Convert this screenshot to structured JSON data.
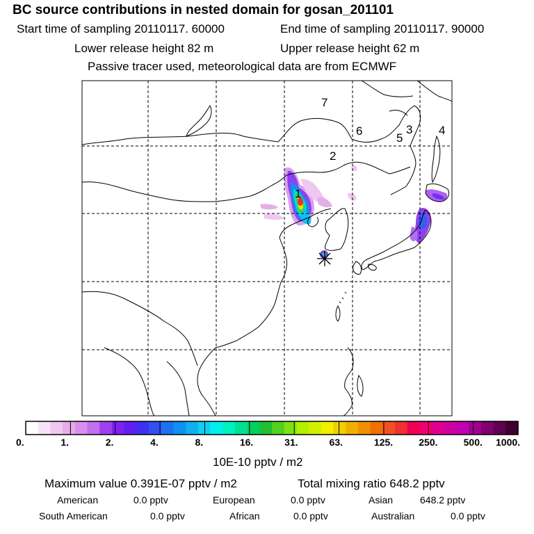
{
  "header": {
    "title": "BC  source contributions in nested domain for gosan_201101",
    "start_time": "Start time of sampling 20110117. 60000",
    "end_time": "End time of sampling 20110117. 90000",
    "lower_height": "Lower release height   82 m",
    "upper_height": "Upper release height   62 m",
    "tracer_note": "Passive tracer used, meteorological data are from ECMWF"
  },
  "map": {
    "region_labels": [
      "1",
      "2",
      "3",
      "4",
      "5",
      "6",
      "7"
    ],
    "receptor_marker": "star-icon"
  },
  "colorbar": {
    "tick_labels": [
      "0.",
      "1.",
      "2.",
      "4.",
      "8.",
      "16.",
      "31.",
      "63.",
      "125.",
      "250.",
      "500.",
      "1000."
    ],
    "unit_label": "10E-10 pptv / m2",
    "colors": [
      "#ffffff",
      "#f7e3f7",
      "#efc7ef",
      "#e6aee6",
      "#d890f0",
      "#c070f0",
      "#a040f0",
      "#8020f0",
      "#6020f0",
      "#4030f0",
      "#3050f0",
      "#2070f0",
      "#1090f0",
      "#10b0f0",
      "#10d0f0",
      "#00f0f0",
      "#00f0c0",
      "#00e090",
      "#00d060",
      "#20c030",
      "#50d020",
      "#80e010",
      "#b0f000",
      "#d0f000",
      "#f0f000",
      "#f0d000",
      "#f0b000",
      "#f09000",
      "#f07000",
      "#f05020",
      "#f03030",
      "#f00050",
      "#f00070",
      "#e00090",
      "#d000a0",
      "#c000b0",
      "#a00090",
      "#800070",
      "#600050",
      "#400030"
    ]
  },
  "footer": {
    "max_value": "Maximum value  0.391E-07 pptv / m2",
    "total_mixing": "Total mixing ratio      648.2 pptv",
    "american_label": "American",
    "american_value": "0.0 pptv",
    "european_label": "European",
    "european_value": "0.0 pptv",
    "asian_label": "Asian",
    "asian_value": "648.2 pptv",
    "south_american_label": "South American",
    "south_american_value": "0.0 pptv",
    "african_label": "African",
    "african_value": "0.0 pptv",
    "australian_label": "Australian",
    "australian_value": "0.0 pptv"
  }
}
